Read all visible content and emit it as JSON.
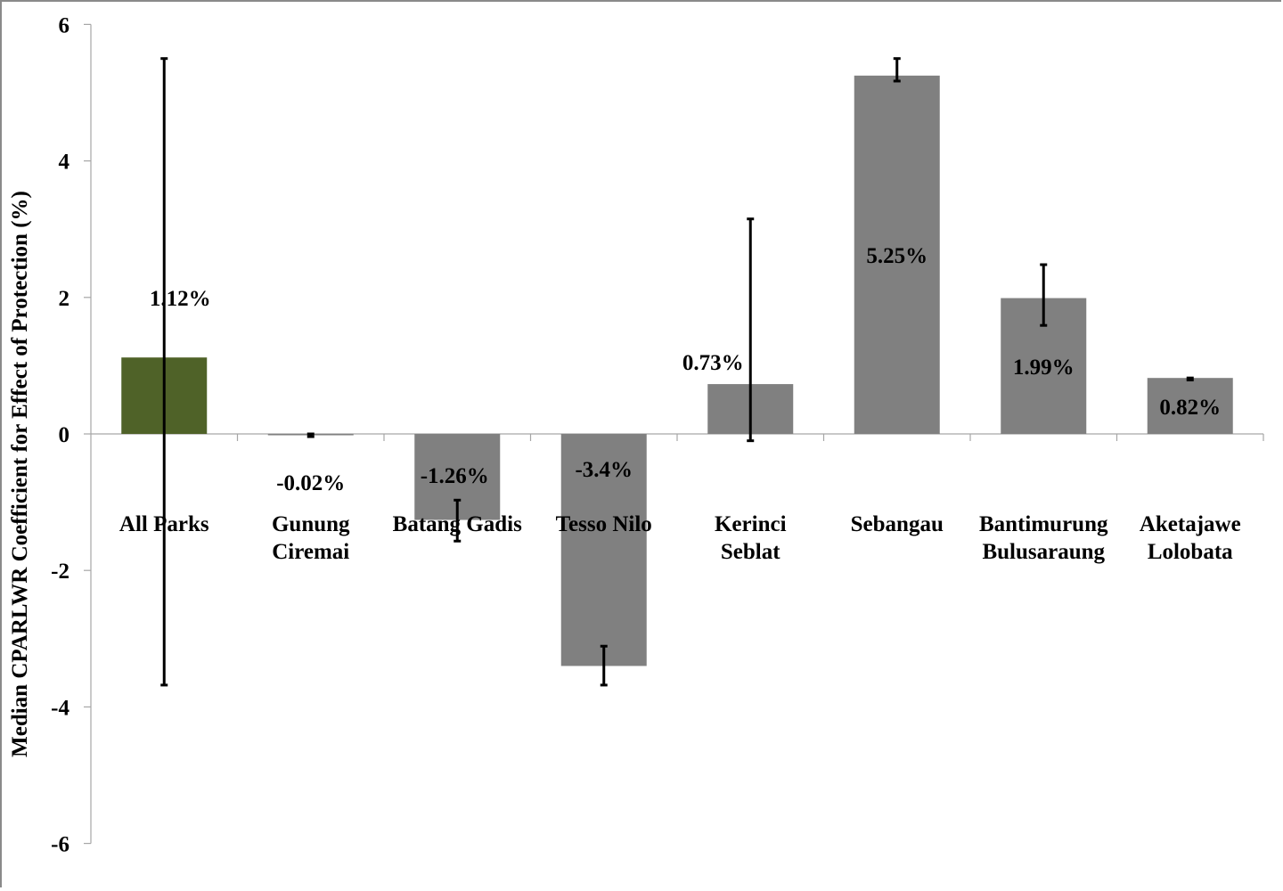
{
  "chart_data": {
    "type": "bar",
    "title": "",
    "xlabel": "",
    "ylabel": "Median CPARLWR Coefficient for Effect of Protection (%)",
    "ylim": [
      -6,
      6
    ],
    "yticks": [
      -6,
      -4,
      -2,
      0,
      2,
      4,
      6
    ],
    "ytick_labels": [
      "-6",
      "-4",
      "-2",
      "0",
      "2",
      "4",
      "6"
    ],
    "grid": false,
    "legend": null,
    "categories": [
      "All Parks",
      "Gunung Ciremai",
      "Batang Gadis",
      "Tesso Nilo",
      "Kerinci Seblat",
      "Sebangau",
      "Bantimurung Bulusaraung",
      "Aketajawe Lolobata"
    ],
    "category_lines": [
      [
        "All Parks"
      ],
      [
        "Gunung",
        "Ciremai"
      ],
      [
        "Batang Gadis"
      ],
      [
        "Tesso Nilo"
      ],
      [
        "Kerinci",
        "Seblat"
      ],
      [
        "Sebangau"
      ],
      [
        "Bantimurung",
        "Bulusaraung"
      ],
      [
        "Aketajawe",
        "Lolobata"
      ]
    ],
    "values": [
      1.12,
      -0.02,
      -1.26,
      -3.4,
      0.73,
      5.25,
      1.99,
      0.82
    ],
    "value_labels": [
      "1.12%",
      "-0.02%",
      "-1.26%",
      "-3.4%",
      "0.73%",
      "5.25%",
      "1.99%",
      "0.82%"
    ],
    "error_bars": [
      {
        "low": -3.68,
        "high": 5.5
      },
      {
        "low": -0.04,
        "high": 0.0
      },
      {
        "low": -1.57,
        "high": -0.97
      },
      {
        "low": -3.68,
        "high": -3.11
      },
      {
        "low": -0.1,
        "high": 3.15
      },
      {
        "low": 5.17,
        "high": 5.5
      },
      {
        "low": 1.59,
        "high": 2.48
      },
      {
        "low": 0.79,
        "high": 0.82
      }
    ],
    "colors": [
      "#4f6228",
      "#808080",
      "#808080",
      "#808080",
      "#808080",
      "#808080",
      "#808080",
      "#808080"
    ]
  },
  "colors": {
    "highlight_bar": "#4f6228",
    "default_bar": "#808080",
    "axis": "#a6a6a6",
    "error_bar": "#000000"
  }
}
